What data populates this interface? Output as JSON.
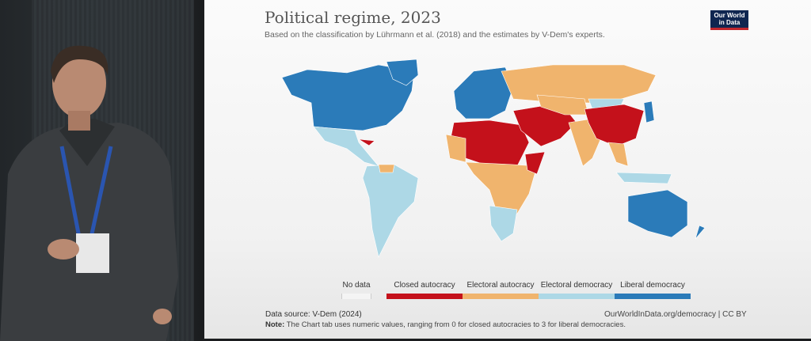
{
  "slide": {
    "title": "Political regime, 2023",
    "subtitle": "Based on the classification by Lührmann et al. (2018) and the estimates by V-Dem's experts.",
    "logo_line1": "Our World",
    "logo_line2": "in Data",
    "legend": [
      {
        "label": "No data",
        "color": "#f4f4f4"
      },
      {
        "label": "Closed autocracy",
        "color": "#c4111b"
      },
      {
        "label": "Electoral autocracy",
        "color": "#f0b46d"
      },
      {
        "label": "Electoral democracy",
        "color": "#add8e6"
      },
      {
        "label": "Liberal democracy",
        "color": "#2b7bb9"
      }
    ],
    "source_label": "Data source:",
    "source_value": "V-Dem (2024)",
    "url": "OurWorldInData.org/democracy | CC BY",
    "note_label": "Note:",
    "note_text": "The Chart tab uses numeric values, ranging from 0 for closed autocracies to 3 for liberal democracies."
  }
}
